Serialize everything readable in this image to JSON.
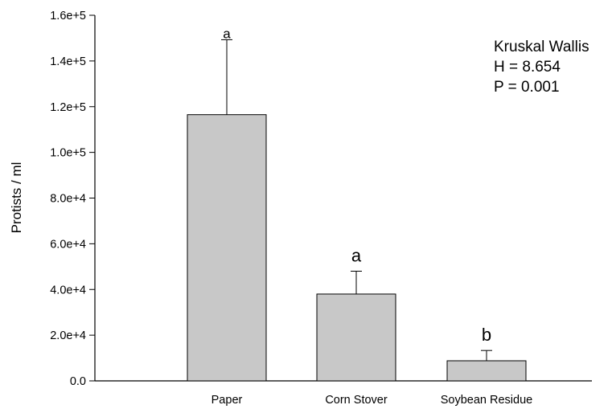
{
  "chart_data": {
    "type": "bar",
    "xlabel": "",
    "ylabel": "Protists / ml",
    "ylim": [
      0,
      160000
    ],
    "yticks": [
      0,
      20000,
      40000,
      60000,
      80000,
      100000,
      120000,
      140000,
      160000
    ],
    "ytick_labels": [
      "0.0",
      "2.0e+4",
      "4.0e+4",
      "6.0e+4",
      "8.0e+4",
      "1.0e+5",
      "1.2e+5",
      "1.4e+5",
      "1.6e+5"
    ],
    "categories": [
      "Paper",
      "Corn Stover",
      "Soybean Residue"
    ],
    "values": [
      116500,
      38000,
      8800
    ],
    "errors": [
      32800,
      10000,
      4500
    ],
    "significance_labels": [
      "a",
      "a",
      "b"
    ],
    "annotation": [
      "Kruskal Wallis",
      "H = 8.654",
      "P = 0.001"
    ],
    "bar_color": "#c8c8c8",
    "grid": false
  }
}
